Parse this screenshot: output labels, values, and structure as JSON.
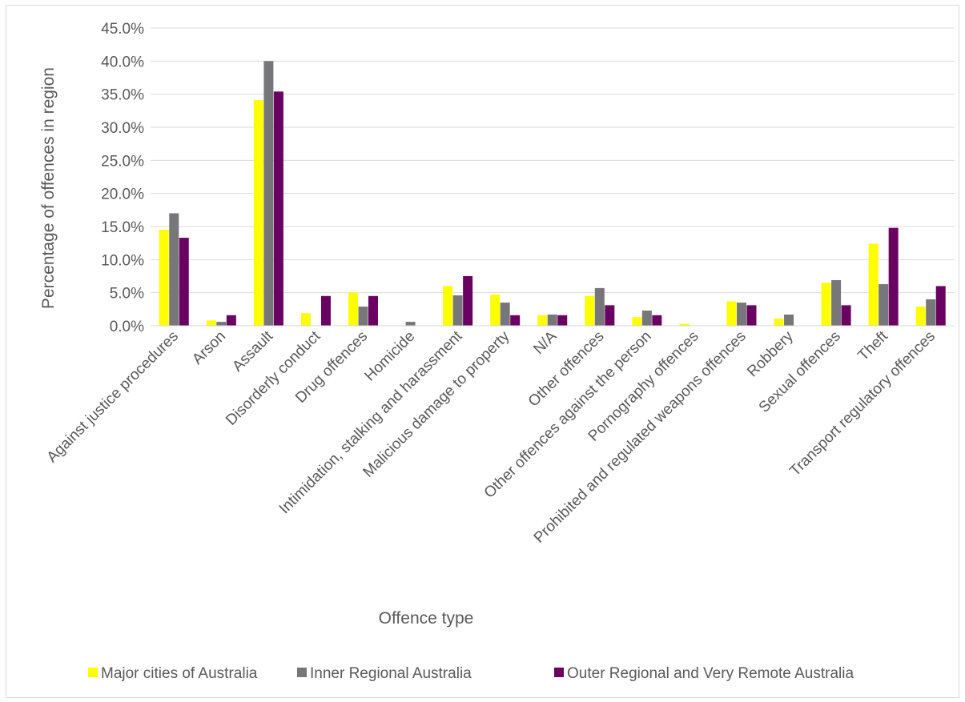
{
  "chart_data": {
    "type": "bar",
    "title": "",
    "xlabel": "Offence type",
    "ylabel": "Percentage of offences in region",
    "ylim": [
      0,
      45
    ],
    "ytick_step": 5,
    "ytick_format": "percent_1dp",
    "grid": true,
    "legend_position": "bottom",
    "categories": [
      "Against justice procedures",
      "Arson",
      "Assault",
      "Disorderly conduct",
      "Drug offences",
      "Homicide",
      "Intimidation, stalking and harassment",
      "Malicious damage to property",
      "N/A",
      "Other offences",
      "Other offences against the person",
      "Pornography offences",
      "Prohibited and regulated weapons offences",
      "Robbery",
      "Sexual offences",
      "Theft",
      "Transport regulatory offences"
    ],
    "series": [
      {
        "name": "Major cities of Australia",
        "color": "#ffff00",
        "values": [
          14.5,
          0.8,
          34.1,
          1.9,
          5.0,
          0.0,
          6.0,
          4.7,
          1.6,
          4.5,
          1.3,
          0.3,
          3.7,
          1.1,
          6.5,
          12.4,
          2.9
        ]
      },
      {
        "name": "Inner Regional Australia",
        "color": "#77767b",
        "values": [
          17.0,
          0.6,
          40.0,
          0.0,
          2.9,
          0.6,
          4.6,
          3.5,
          1.7,
          5.7,
          2.3,
          0.0,
          3.5,
          1.7,
          6.9,
          6.3,
          4.0
        ]
      },
      {
        "name": "Outer Regional and Very Remote Australia",
        "color": "#6a0262",
        "values": [
          13.3,
          1.6,
          35.4,
          4.5,
          4.5,
          0.0,
          7.5,
          1.6,
          1.6,
          3.1,
          1.6,
          0.0,
          3.1,
          0.0,
          3.1,
          14.8,
          6.0
        ]
      }
    ]
  }
}
